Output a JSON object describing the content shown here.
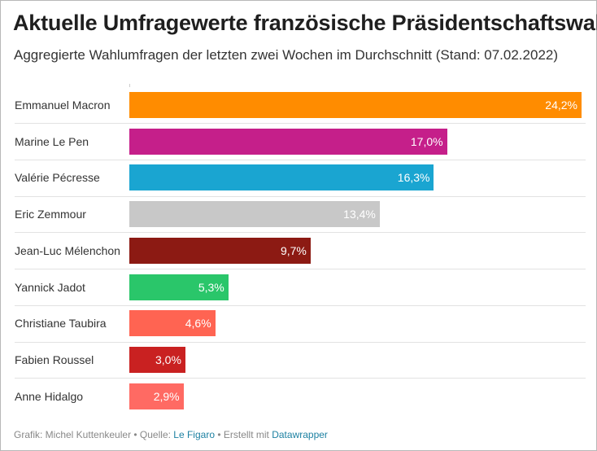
{
  "header": {
    "title": "Aktuelle Umfragewerte französische Präsidentschaftswahl",
    "subtitle": "Aggregierte Wahlumfragen der letzten zwei Wochen im Durchschnitt (Stand: 07.02.2022)"
  },
  "chart_data": {
    "type": "bar",
    "orientation": "horizontal",
    "title": "Aktuelle Umfragewerte französische Präsidentschaftswahl",
    "subtitle": "Aggregierte Wahlumfragen der letzten zwei Wochen im Durchschnitt (Stand: 07.02.2022)",
    "categories": [
      "Emmanuel Macron",
      "Marine Le Pen",
      "Valérie Pécresse",
      "Eric Zemmour",
      "Jean-Luc Mélenchon",
      "Yannick Jadot",
      "Christiane Taubira",
      "Fabien Roussel",
      "Anne Hidalgo"
    ],
    "values": [
      24.2,
      17.0,
      16.3,
      13.4,
      9.7,
      5.3,
      4.6,
      3.0,
      2.9
    ],
    "value_labels": [
      "24,2%",
      "17,0%",
      "16,3%",
      "13,4%",
      "9,7%",
      "5,3%",
      "4,6%",
      "3,0%",
      "2,9%"
    ],
    "colors": [
      "#ff8c00",
      "#c51f8a",
      "#1aa5d1",
      "#c8c8c8",
      "#8c1a13",
      "#2ac66a",
      "#ff6452",
      "#c92121",
      "#ff6a63"
    ],
    "xlim": [
      0,
      24.2
    ],
    "grid": false,
    "legend": "none"
  },
  "footer": {
    "prefix": "Grafik: Michel Kuttenkeuler • Quelle: ",
    "source_link": "Le Figaro",
    "middle": " • Erstellt mit ",
    "tool_link": "Datawrapper"
  }
}
